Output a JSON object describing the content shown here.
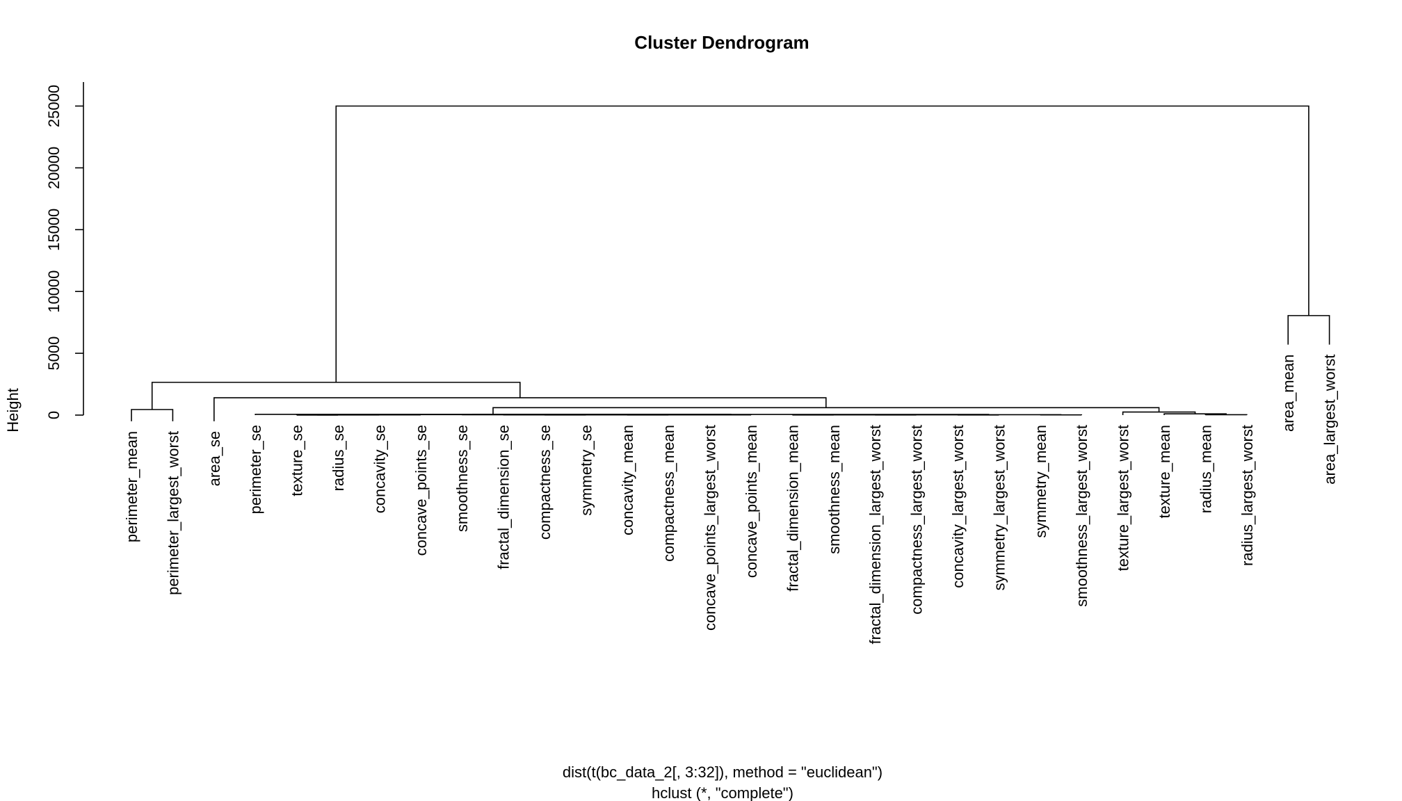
{
  "chart_data": {
    "type": "dendrogram",
    "title": "Cluster Dendrogram",
    "ylabel": "Height",
    "xlabel": "dist(t(bc_data_2[, 3:32]), method = \"euclidean\")",
    "sublabel": "hclust (*, \"complete\")",
    "ylim": [
      0,
      27000
    ],
    "yticks": [
      0,
      5000,
      10000,
      15000,
      20000,
      25000
    ],
    "ytick_labels": [
      "0",
      "5000",
      "10000",
      "15000",
      "20000",
      "25000"
    ],
    "leaves": [
      "perimeter_mean",
      "perimeter_largest_worst",
      "area_se",
      "perimeter_se",
      "texture_se",
      "radius_se",
      "concavity_se",
      "concave_points_se",
      "smoothness_se",
      "fractal_dimension_se",
      "compactness_se",
      "symmetry_se",
      "concavity_mean",
      "compactness_mean",
      "concave_points_largest_worst",
      "concave_points_mean",
      "fractal_dimension_mean",
      "smoothness_mean",
      "fractal_dimension_largest_worst",
      "compactness_largest_worst",
      "concavity_largest_worst",
      "symmetry_largest_worst",
      "symmetry_mean",
      "smoothness_largest_worst",
      "texture_largest_worst",
      "texture_mean",
      "radius_mean",
      "radius_largest_worst",
      "area_mean",
      "area_largest_worst"
    ],
    "leaf_heights": [
      -500,
      -500,
      -500,
      0,
      0,
      0,
      0,
      0,
      0,
      0,
      0,
      0,
      0,
      0,
      0,
      0,
      0,
      0,
      0,
      0,
      0,
      0,
      0,
      0,
      0,
      0,
      0,
      0,
      5700,
      5700
    ],
    "merges": [
      {
        "a": "L26",
        "b": "L27",
        "height": 30
      },
      {
        "a": "L25",
        "b": "M0",
        "height": 100
      },
      {
        "a": "L4",
        "b": "L5",
        "height": 5
      },
      {
        "a": "M2",
        "b": "L6",
        "height": 10
      },
      {
        "a": "L10",
        "b": "L11",
        "height": 10
      },
      {
        "a": "L12",
        "b": "L13",
        "height": 10
      },
      {
        "a": "L16",
        "b": "L17",
        "height": 10
      },
      {
        "a": "L18",
        "b": "L19",
        "height": 10
      },
      {
        "a": "L20",
        "b": "L21",
        "height": 10
      },
      {
        "a": "M3",
        "b": "L7",
        "height": 15
      },
      {
        "a": "L9",
        "b": "M4",
        "height": 15
      },
      {
        "a": "M10",
        "b": "M5",
        "height": 15
      },
      {
        "a": "L14",
        "b": "L15",
        "height": 15
      },
      {
        "a": "M11",
        "b": "M12",
        "height": 20
      },
      {
        "a": "M6",
        "b": "M7",
        "height": 20
      },
      {
        "a": "M14",
        "b": "M8",
        "height": 25
      },
      {
        "a": "L22",
        "b": "L23",
        "height": 20
      },
      {
        "a": "M15",
        "b": "M16",
        "height": 30
      },
      {
        "a": "L8",
        "b": "M13",
        "height": 30
      },
      {
        "a": "M9",
        "b": "M18",
        "height": 40
      },
      {
        "a": "M19",
        "b": "M17",
        "height": 50
      },
      {
        "a": "L3",
        "b": "M20",
        "height": 60
      },
      {
        "a": "L24",
        "b": "M1",
        "height": 250
      },
      {
        "a": "M21",
        "b": "M22",
        "height": 600
      },
      {
        "a": "L2",
        "b": "M23",
        "height": 1400
      },
      {
        "a": "L0",
        "b": "L1",
        "height": 450
      },
      {
        "a": "M25",
        "b": "M24",
        "height": 2650
      },
      {
        "a": "L28",
        "b": "L29",
        "height": 8050
      },
      {
        "a": "M26",
        "b": "M27",
        "height": 25000
      }
    ]
  }
}
